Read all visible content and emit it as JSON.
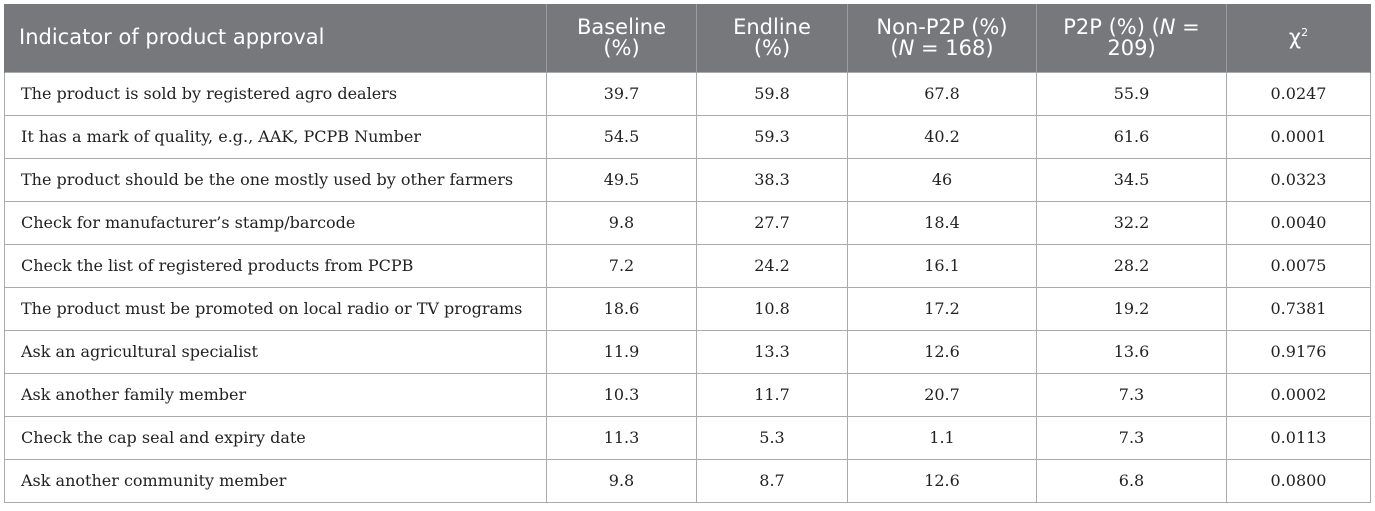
{
  "table": {
    "headers": [
      {
        "line1": "Indicator of product approval",
        "line2": ""
      },
      {
        "line1": "Baseline",
        "line2": "(%)"
      },
      {
        "line1": "Endline",
        "line2": "(%)"
      },
      {
        "line1": "Non-P2P (%)",
        "line2_pre": "(",
        "line2_n": "N",
        "line2_post": " = 168)"
      },
      {
        "line1_pre": "P2P (%) (",
        "line1_n": "N",
        "line1_post": " =",
        "line2": "209)"
      },
      {
        "symbol": "χ",
        "sup": "2"
      }
    ],
    "rows": [
      [
        "The product is sold by registered agro dealers",
        "39.7",
        "59.8",
        "67.8",
        "55.9",
        "0.0247"
      ],
      [
        "It has a mark of quality, e.g., AAK, PCPB Number",
        "54.5",
        "59.3",
        "40.2",
        "61.6",
        "0.0001"
      ],
      [
        "The product should be the one mostly used by other farmers",
        "49.5",
        "38.3",
        "46",
        "34.5",
        "0.0323"
      ],
      [
        "Check for manufacturer’s stamp/barcode",
        "9.8",
        "27.7",
        "18.4",
        "32.2",
        "0.0040"
      ],
      [
        "Check the list of registered products from PCPB",
        "7.2",
        "24.2",
        "16.1",
        "28.2",
        "0.0075"
      ],
      [
        "The product must be promoted on local radio or TV programs",
        "18.6",
        "10.8",
        "17.2",
        "19.2",
        "0.7381"
      ],
      [
        "Ask an agricultural specialist",
        "11.9",
        "13.3",
        "12.6",
        "13.6",
        "0.9176"
      ],
      [
        "Ask another family member",
        "10.3",
        "11.7",
        "20.7",
        "7.3",
        "0.0002"
      ],
      [
        "Check the cap seal and expiry date",
        "11.3",
        "5.3",
        "1.1",
        "7.3",
        "0.0113"
      ],
      [
        "Ask another community member",
        "9.8",
        "8.7",
        "12.6",
        "6.8",
        "0.0800"
      ]
    ]
  },
  "colors": {
    "header_bg": "#76787b",
    "header_text": "#ffffff",
    "border": "#a8aaac",
    "body_text": "#222222"
  }
}
